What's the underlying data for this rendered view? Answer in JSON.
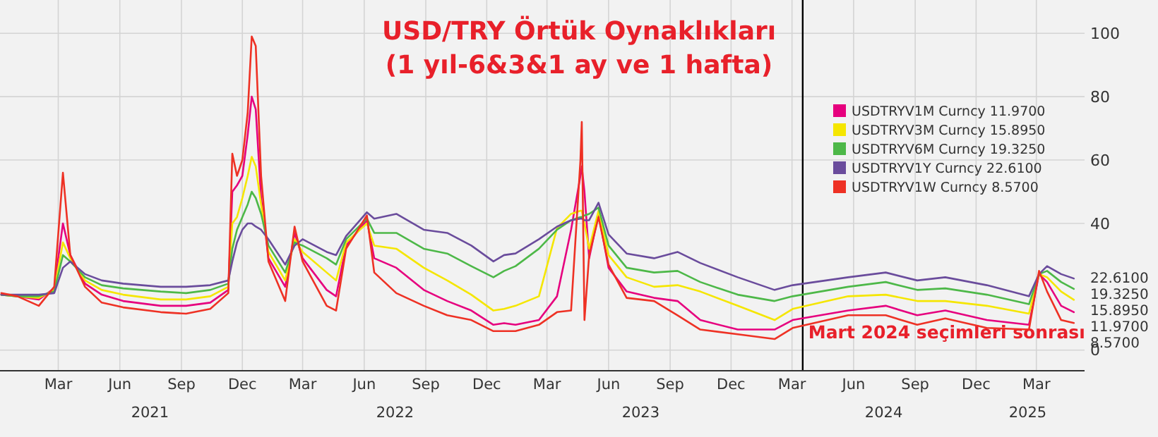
{
  "chart_data": {
    "type": "line",
    "title": "USD/TRY Örtük Oynaklıkları",
    "subtitle": "(1 yıl-6&3&1 ay ve 1 hafta)",
    "x": [
      "2020-12-20",
      "2021-01-13",
      "2021-02-14",
      "2021-03-09",
      "2021-03-22",
      "2021-04-02",
      "2021-04-24",
      "2021-05-19",
      "2021-06-20",
      "2021-08-15",
      "2021-09-22",
      "2021-10-28",
      "2021-11-24",
      "2021-11-30",
      "2021-12-07",
      "2021-12-15",
      "2021-12-23",
      "2021-12-29",
      "2022-01-04",
      "2022-01-12",
      "2022-01-23",
      "2022-02-17",
      "2022-03-03",
      "2022-03-15",
      "2022-04-20",
      "2022-05-04",
      "2022-05-19",
      "2022-06-19",
      "2022-06-30",
      "2022-08-02",
      "2022-09-12",
      "2022-10-17",
      "2022-11-22",
      "2022-12-25",
      "2023-01-10",
      "2023-01-27",
      "2023-03-03",
      "2023-03-30",
      "2023-04-20",
      "2023-05-04",
      "2023-05-06",
      "2023-05-10",
      "2023-05-17",
      "2023-05-31",
      "2023-06-15",
      "2023-07-12",
      "2023-08-22",
      "2023-09-26",
      "2023-10-30",
      "2023-12-25",
      "2024-02-18",
      "2024-03-16",
      "2024-06-07",
      "2024-08-02",
      "2024-09-18",
      "2024-10-30",
      "2024-12-31",
      "2025-03-04",
      "2025-03-19",
      "2025-03-31",
      "2025-04-21",
      "2025-05-10"
    ],
    "series": [
      {
        "name": "USDTRYV1M Curncy 11.9700",
        "color": "#e6007e",
        "values": [
          17.5,
          17,
          16,
          19.5,
          40,
          30,
          21,
          17.5,
          15.5,
          14,
          14,
          15,
          19,
          50,
          52,
          55,
          68,
          80,
          76,
          48,
          29,
          20,
          37,
          29,
          19,
          17,
          33,
          41,
          29,
          26,
          19,
          15.5,
          12.5,
          8,
          8.5,
          8,
          9.5,
          17,
          38,
          55,
          58,
          50,
          29,
          43,
          26,
          18.5,
          16.5,
          15.5,
          9.5,
          6.5,
          6.5,
          9.5,
          12.5,
          14,
          11,
          12.5,
          9.5,
          8,
          24,
          21.5,
          14,
          11.97
        ],
        "value_labels": [
          null,
          null,
          null,
          null,
          null,
          null,
          null,
          null,
          null,
          null,
          null,
          null,
          null,
          null,
          null,
          null,
          null,
          null,
          null,
          null,
          null,
          null,
          null,
          null,
          null,
          null,
          null,
          null,
          null,
          null,
          null,
          null,
          null,
          null,
          null,
          null,
          null,
          null,
          null,
          null,
          null,
          null,
          null,
          null,
          null,
          null,
          null,
          null,
          null,
          null,
          null,
          null,
          null,
          null,
          null,
          null,
          null,
          null,
          null,
          null,
          null,
          "11.9700"
        ]
      },
      {
        "name": "USDTRYV3M Curncy 15.8950",
        "color": "#f5e600",
        "values": [
          17.5,
          17,
          16.5,
          19,
          34,
          29,
          22,
          19,
          17.5,
          16,
          16,
          17,
          20,
          40,
          42,
          48,
          55,
          61,
          58,
          46,
          31,
          22,
          35,
          31,
          24.5,
          22,
          34,
          40,
          33,
          32,
          26,
          22,
          17.5,
          12.5,
          13,
          14,
          17,
          38.5,
          43,
          44,
          44,
          40,
          32,
          44,
          30,
          23,
          20,
          20.5,
          18.5,
          14,
          9.5,
          13,
          17,
          17.5,
          15.5,
          15.5,
          14,
          11.5,
          24,
          23,
          18.5,
          15.895
        ],
        "value_labels": [
          null,
          null,
          null,
          null,
          null,
          null,
          null,
          null,
          null,
          null,
          null,
          null,
          null,
          null,
          null,
          null,
          null,
          null,
          null,
          null,
          null,
          null,
          null,
          null,
          null,
          null,
          null,
          null,
          null,
          null,
          null,
          null,
          null,
          null,
          null,
          null,
          null,
          null,
          null,
          null,
          null,
          null,
          null,
          null,
          null,
          null,
          null,
          null,
          null,
          null,
          null,
          null,
          null,
          null,
          null,
          null,
          null,
          null,
          null,
          null,
          null,
          "15.8950"
        ]
      },
      {
        "name": "USDTRYV6M Curncy 19.3250",
        "color": "#4db848",
        "values": [
          17.5,
          17,
          17,
          18.5,
          30,
          28,
          23,
          20.5,
          19.5,
          18.5,
          18,
          19,
          21,
          32,
          38,
          42,
          46,
          50,
          48,
          43,
          33,
          24.5,
          34,
          33,
          29,
          27,
          35,
          41.5,
          37,
          37,
          32,
          30.5,
          26.5,
          23,
          25,
          26.5,
          32,
          38,
          41,
          42,
          42,
          42.5,
          43,
          45,
          33,
          26,
          24.5,
          25,
          21.5,
          17.5,
          15.5,
          17,
          20,
          21.5,
          19,
          19.5,
          17.5,
          14.5,
          24,
          25,
          21.5,
          19.325
        ],
        "value_labels": [
          null,
          null,
          null,
          null,
          null,
          null,
          null,
          null,
          null,
          null,
          null,
          null,
          null,
          null,
          null,
          null,
          null,
          null,
          null,
          null,
          null,
          null,
          null,
          null,
          null,
          null,
          null,
          null,
          null,
          null,
          null,
          null,
          null,
          null,
          null,
          null,
          null,
          null,
          null,
          null,
          null,
          null,
          null,
          null,
          null,
          null,
          null,
          null,
          null,
          null,
          null,
          null,
          null,
          null,
          null,
          null,
          null,
          null,
          null,
          null,
          null,
          "19.3250"
        ]
      },
      {
        "name": "USDTRYV1Y Curncy 22.6100",
        "color": "#6a4c9c",
        "values": [
          17.5,
          17.5,
          17.5,
          18,
          26,
          28,
          24,
          22,
          21,
          20,
          20,
          20.5,
          22,
          28,
          34,
          38,
          40,
          40,
          39,
          38,
          35,
          27,
          33,
          35,
          31,
          30,
          36,
          43.5,
          41.5,
          43,
          38,
          37,
          33,
          28,
          30,
          30.5,
          35,
          39,
          41,
          41.5,
          41.5,
          41,
          41,
          46.5,
          36.5,
          30.5,
          29,
          31,
          27.5,
          23,
          19,
          20.5,
          23,
          24.5,
          22,
          23,
          20.5,
          17,
          24,
          26.5,
          24,
          22.61
        ],
        "value_labels": [
          null,
          null,
          null,
          null,
          null,
          null,
          null,
          null,
          null,
          null,
          null,
          null,
          null,
          null,
          null,
          null,
          null,
          null,
          null,
          null,
          null,
          null,
          null,
          null,
          null,
          null,
          null,
          null,
          null,
          null,
          null,
          null,
          null,
          null,
          null,
          null,
          null,
          null,
          null,
          null,
          null,
          null,
          null,
          null,
          null,
          null,
          null,
          null,
          null,
          null,
          null,
          null,
          null,
          null,
          null,
          null,
          null,
          null,
          null,
          null,
          null,
          "22.6100"
        ]
      },
      {
        "name": "USDTRYV1W Curncy 8.5700",
        "color": "#ee3124",
        "values": [
          18,
          17,
          14,
          20,
          56,
          30,
          20,
          15,
          13.5,
          12,
          11.5,
          13,
          18,
          62,
          55,
          60,
          75,
          99,
          96,
          55,
          28,
          15.5,
          39,
          28,
          14,
          12.5,
          32,
          42.5,
          24.5,
          18,
          14,
          11,
          9.5,
          6,
          6,
          6,
          8,
          12,
          12.5,
          60,
          72,
          9.5,
          30,
          42,
          27,
          16.5,
          15.5,
          11,
          6.5,
          5,
          3.5,
          7,
          11,
          11,
          8,
          10,
          7,
          6.5,
          25,
          18.5,
          9.5,
          8.57
        ],
        "value_labels": [
          null,
          null,
          null,
          null,
          null,
          null,
          null,
          null,
          null,
          null,
          null,
          null,
          null,
          null,
          null,
          null,
          null,
          null,
          null,
          null,
          null,
          null,
          null,
          null,
          null,
          null,
          null,
          null,
          null,
          null,
          null,
          null,
          null,
          null,
          null,
          null,
          null,
          null,
          null,
          null,
          null,
          null,
          null,
          null,
          null,
          null,
          null,
          null,
          null,
          null,
          null,
          null,
          null,
          null,
          null,
          null,
          null,
          null,
          null,
          null,
          null,
          "8.5700"
        ]
      }
    ],
    "xlim": [
      "2020-12-18",
      "2025-05-26"
    ],
    "xticks": [
      {
        "value": "2021-03-15",
        "label": "Mar"
      },
      {
        "value": "2021-06-15",
        "label": "Jun"
      },
      {
        "value": "2021-09-15",
        "label": "Sep"
      },
      {
        "value": "2021-12-15",
        "label": "Dec"
      },
      {
        "value": "2022-03-15",
        "label": "Mar"
      },
      {
        "value": "2022-06-15",
        "label": "Jun"
      },
      {
        "value": "2022-09-15",
        "label": "Sep"
      },
      {
        "value": "2022-12-15",
        "label": "Dec"
      },
      {
        "value": "2023-03-15",
        "label": "Mar"
      },
      {
        "value": "2023-06-15",
        "label": "Jun"
      },
      {
        "value": "2023-09-15",
        "label": "Sep"
      },
      {
        "value": "2023-12-15",
        "label": "Dec"
      },
      {
        "value": "2024-03-15",
        "label": "Mar"
      },
      {
        "value": "2024-06-15",
        "label": "Jun"
      },
      {
        "value": "2024-09-15",
        "label": "Sep"
      },
      {
        "value": "2024-12-15",
        "label": "Dec"
      },
      {
        "value": "2025-03-15",
        "label": "Mar"
      }
    ],
    "x2lim": [
      "2020-12-18",
      "2025-05-26"
    ],
    "x2ticks": [
      {
        "value": "2021-07-30",
        "label": "2021"
      },
      {
        "value": "2022-07-31",
        "label": "2022"
      },
      {
        "value": "2023-08-02",
        "label": "2023"
      },
      {
        "value": "2024-07-30",
        "label": "2024"
      },
      {
        "value": "2025-03-02",
        "label": "2025"
      }
    ],
    "ylim": [
      -6.5,
      110.5
    ],
    "yticks": [
      0,
      40,
      60,
      80,
      100
    ],
    "ref_lines": [
      {
        "axis": "x",
        "value": "2024-03-31",
        "label": "Mart 2024 seçimleri sonrası",
        "color": "#000000"
      }
    ],
    "grid": true,
    "legend": "top right",
    "marker": "none",
    "line_style": "solid"
  }
}
